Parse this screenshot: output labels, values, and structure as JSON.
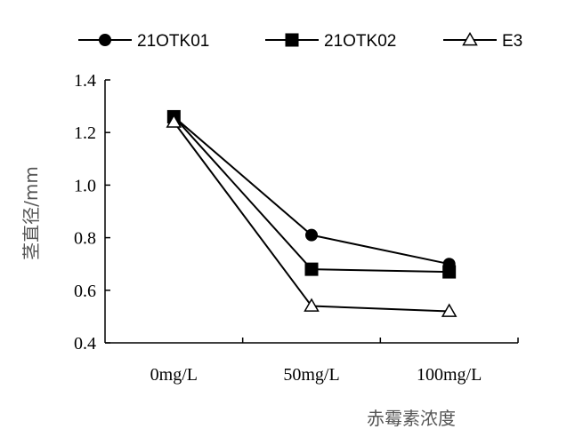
{
  "chart_data": {
    "type": "line",
    "categories": [
      "0mg/L",
      "50mg/L",
      "100mg/L"
    ],
    "series": [
      {
        "name": "21OTK01",
        "marker": "circle",
        "values": [
          1.26,
          0.81,
          0.7
        ]
      },
      {
        "name": "21OTK02",
        "marker": "square",
        "values": [
          1.26,
          0.68,
          0.67
        ]
      },
      {
        "name": "E3",
        "marker": "triangle-open",
        "values": [
          1.24,
          0.54,
          0.52
        ]
      }
    ],
    "ylim": [
      0.4,
      1.4
    ],
    "yticks": [
      "0.4",
      "0.6",
      "0.8",
      "1.0",
      "1.2",
      "1.4"
    ],
    "ylabel": "茎直径/mm",
    "xlabel": "赤霉素浓度",
    "legend_position": "top",
    "grid": false,
    "colors": {
      "line": "#000000",
      "axis_label": "#555555"
    }
  }
}
